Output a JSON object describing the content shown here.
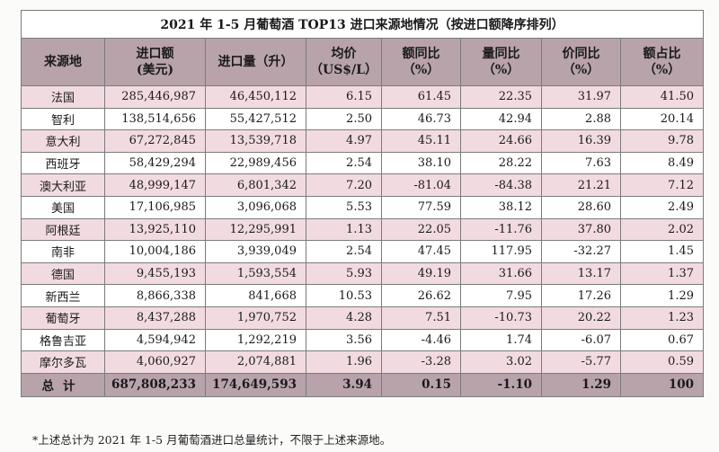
{
  "title": "2021 年 1-5 月葡萄酒 TOP13 进口来源地情况（按进口额降序排列）",
  "headers": [
    [
      "来源地",
      ""
    ],
    [
      "进口额",
      "(美元)"
    ],
    [
      "进口量（升）",
      ""
    ],
    [
      "均价",
      "（US$/L）"
    ],
    [
      "额同比",
      "（%）"
    ],
    [
      "量同比",
      "（%）"
    ],
    [
      "价同比",
      "（%）"
    ],
    [
      "额占比",
      "（%）"
    ]
  ],
  "rows": [
    [
      "法国",
      "285,446,987",
      "46,450,112",
      "6.15",
      "61.45",
      "22.35",
      "31.97",
      "41.50"
    ],
    [
      "智利",
      "138,514,656",
      "55,427,512",
      "2.50",
      "46.73",
      "42.94",
      "2.88",
      "20.14"
    ],
    [
      "意大利",
      "67,272,845",
      "13,539,718",
      "4.97",
      "45.11",
      "24.66",
      "16.39",
      "9.78"
    ],
    [
      "西班牙",
      "58,429,294",
      "22,989,456",
      "2.54",
      "38.10",
      "28.22",
      "7.63",
      "8.49"
    ],
    [
      "澳大利亚",
      "48,999,147",
      "6,801,342",
      "7.20",
      "-81.04",
      "-84.38",
      "21.21",
      "7.12"
    ],
    [
      "美国",
      "17,106,985",
      "3,096,068",
      "5.53",
      "77.59",
      "38.12",
      "28.60",
      "2.49"
    ],
    [
      "阿根廷",
      "13,925,110",
      "12,295,991",
      "1.13",
      "22.05",
      "-11.76",
      "37.80",
      "2.02"
    ],
    [
      "南非",
      "10,004,186",
      "3,939,049",
      "2.54",
      "47.45",
      "117.95",
      "-32.27",
      "1.45"
    ],
    [
      "德国",
      "9,455,193",
      "1,593,554",
      "5.93",
      "49.19",
      "31.66",
      "13.17",
      "1.37"
    ],
    [
      "新西兰",
      "8,866,338",
      "841,668",
      "10.53",
      "26.62",
      "7.95",
      "17.26",
      "1.29"
    ],
    [
      "葡萄牙",
      "8,437,288",
      "1,970,752",
      "4.28",
      "7.51",
      "-10.73",
      "20.22",
      "1.23"
    ],
    [
      "格鲁吉亚",
      "4,594,942",
      "1,292,219",
      "3.56",
      "-4.46",
      "1.74",
      "-6.07",
      "0.67"
    ],
    [
      "摩尔多瓦",
      "4,060,927",
      "2,074,881",
      "1.96",
      "-3.28",
      "3.02",
      "-5.77",
      "0.59"
    ]
  ],
  "total": [
    "总计",
    "687,808,233",
    "174,649,593",
    "3.94",
    "0.15",
    "-1.10",
    "1.29",
    "100"
  ],
  "footnote": "*上述总计为 2021 年 1-5 月葡萄酒进口总量统计，不限于上述来源地。",
  "colors": {
    "header_bg": "#b8a3ab",
    "stripe_bg": "#f2dbe0",
    "border": "#7b7b7b"
  }
}
